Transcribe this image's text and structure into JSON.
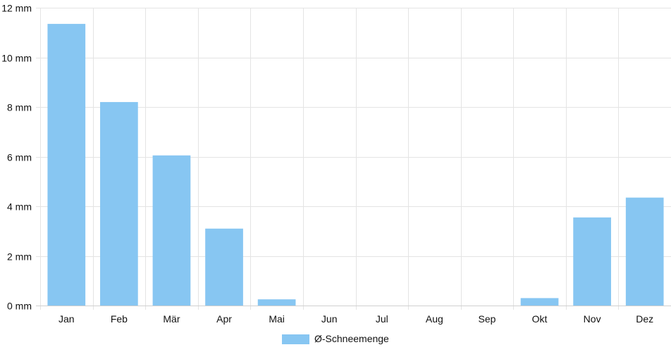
{
  "chart_data": {
    "type": "bar",
    "categories": [
      "Jan",
      "Feb",
      "Mär",
      "Apr",
      "Mai",
      "Jun",
      "Jul",
      "Aug",
      "Sep",
      "Okt",
      "Nov",
      "Dez"
    ],
    "series": [
      {
        "name": "Ø-Schneemenge",
        "values": [
          11.35,
          8.2,
          6.05,
          3.1,
          0.25,
          0,
          0,
          0,
          0,
          0.3,
          3.55,
          4.35
        ]
      }
    ],
    "unit": "mm",
    "ylim": [
      0,
      12
    ],
    "yticks": [
      0,
      2,
      4,
      6,
      8,
      10,
      12
    ],
    "ytick_labels": [
      "0 mm",
      "2 mm",
      "4 mm",
      "6 mm",
      "8 mm",
      "10 mm",
      "12 mm"
    ],
    "grid": true,
    "legend_position": "bottom-center",
    "colors": {
      "bar": "#87c6f2",
      "grid": "#e4e4e4",
      "axis": "#cfcfcf"
    }
  }
}
